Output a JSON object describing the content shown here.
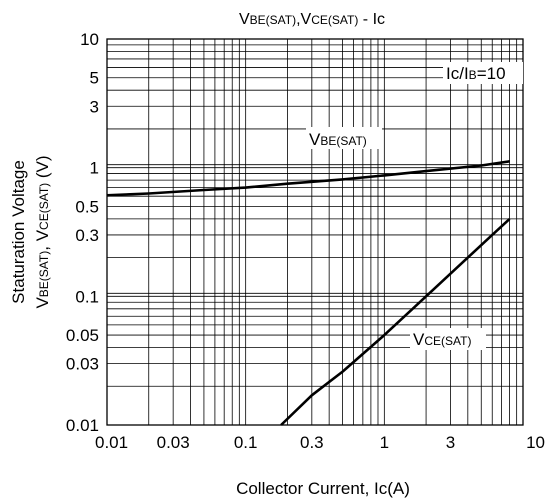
{
  "chart_data": {
    "type": "line",
    "title": {
      "main1": "V",
      "sub1": "BE(SAT)",
      "sep": ",V",
      "sub2": "CE(SAT)",
      "tail": " - Ic"
    },
    "xlabel": "Collector Current, Ic(A)",
    "ylabel": {
      "line1": "Staturation Voltage",
      "line2_a": "V",
      "line2_a_sub": "BE(SAT)",
      "line2_b": ", V",
      "line2_b_sub": "CE(SAT)",
      "line2_c": " (V)"
    },
    "xscale": "log",
    "yscale": "log",
    "xlim": [
      0.01,
      10
    ],
    "ylim": [
      0.01,
      10
    ],
    "xticks": [
      {
        "value": 0.01,
        "label": "0.01"
      },
      {
        "value": 0.03,
        "label": "0.03"
      },
      {
        "value": 0.1,
        "label": "0.1"
      },
      {
        "value": 0.3,
        "label": "0.3"
      },
      {
        "value": 1,
        "label": "1"
      },
      {
        "value": 3,
        "label": "3"
      },
      {
        "value": 10,
        "label": "10"
      }
    ],
    "yticks": [
      {
        "value": 10,
        "label": "10"
      },
      {
        "value": 5,
        "label": "5"
      },
      {
        "value": 3,
        "label": "3"
      },
      {
        "value": 1,
        "label": "1"
      },
      {
        "value": 0.5,
        "label": "0.5"
      },
      {
        "value": 0.3,
        "label": "0.3"
      },
      {
        "value": 0.1,
        "label": "0.1"
      },
      {
        "value": 0.05,
        "label": "0.05"
      },
      {
        "value": 0.03,
        "label": "0.03"
      },
      {
        "value": 0.01,
        "label": "0.01"
      }
    ],
    "grid": true,
    "condition": {
      "a": "Ic/I",
      "sub": "B",
      "b": "=10"
    },
    "series": [
      {
        "name": "VBE(SAT)",
        "label_main": "V",
        "label_sub": "BE(SAT)",
        "x": [
          0.01,
          0.02,
          0.05,
          0.1,
          0.2,
          0.5,
          1,
          2,
          5,
          8
        ],
        "y": [
          0.61,
          0.63,
          0.67,
          0.7,
          0.75,
          0.81,
          0.87,
          0.94,
          1.04,
          1.12
        ]
      },
      {
        "name": "VCE(SAT)",
        "label_main": "V",
        "label_sub": "CE(SAT)",
        "x": [
          0.18,
          0.3,
          0.5,
          1,
          2,
          4,
          6,
          8
        ],
        "y": [
          0.01,
          0.017,
          0.026,
          0.05,
          0.1,
          0.2,
          0.3,
          0.4
        ]
      }
    ],
    "colors": {
      "line": "#000000",
      "grid": "#000000",
      "background": "#ffffff"
    }
  }
}
